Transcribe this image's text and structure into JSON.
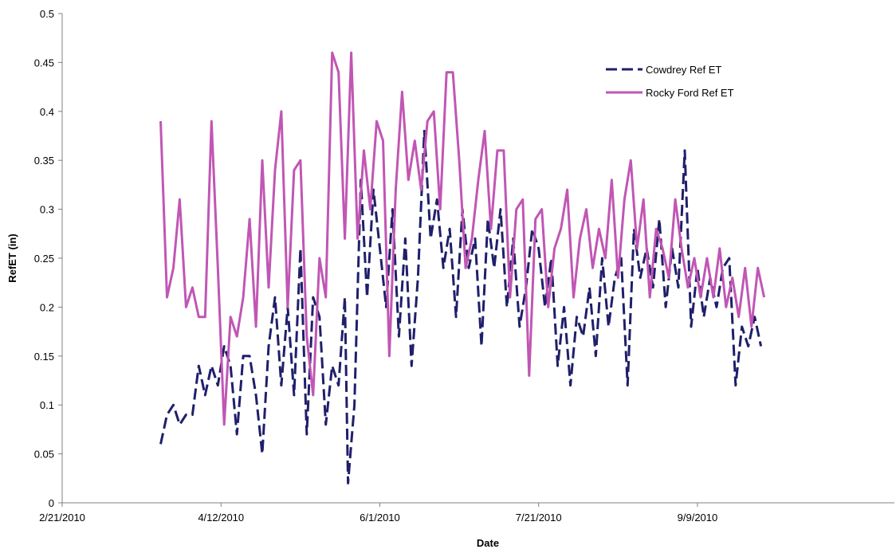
{
  "chart_data": {
    "type": "line",
    "title": "",
    "xlabel": "Date",
    "ylabel": "RefET (in)",
    "x_axis_type": "date",
    "xlim": [
      "2010-02-21",
      "2010-11-10"
    ],
    "ylim": [
      0,
      0.5
    ],
    "x_ticks": [
      "2010-02-21",
      "2010-04-12",
      "2010-06-01",
      "2010-07-21",
      "2010-09-09"
    ],
    "x_tick_labels": [
      "2/21/2010",
      "4/12/2010",
      "6/1/2010",
      "7/21/2010",
      "9/9/2010"
    ],
    "y_ticks": [
      0,
      0.05,
      0.1,
      0.15,
      0.2,
      0.25,
      0.3,
      0.35,
      0.4,
      0.45,
      0.5
    ],
    "y_tick_labels": [
      "0",
      "0.05",
      "0.1",
      "0.15",
      "0.2",
      "0.25",
      "0.3",
      "0.35",
      "0.4",
      "0.45",
      "0.5"
    ],
    "grid": false,
    "legend_position": "top-right",
    "series": [
      {
        "name": "Cowdrey Ref ET",
        "color": "#1f1f6b",
        "dash": "dashed",
        "points": [
          [
            "2010-03-24",
            0.06
          ],
          [
            "2010-03-26",
            0.09
          ],
          [
            "2010-03-28",
            0.1
          ],
          [
            "2010-03-30",
            0.08
          ],
          [
            "2010-04-01",
            0.09
          ],
          [
            "2010-04-03",
            0.09
          ],
          [
            "2010-04-05",
            0.14
          ],
          [
            "2010-04-07",
            0.11
          ],
          [
            "2010-04-09",
            0.14
          ],
          [
            "2010-04-11",
            0.12
          ],
          [
            "2010-04-13",
            0.16
          ],
          [
            "2010-04-15",
            0.14
          ],
          [
            "2010-04-17",
            0.07
          ],
          [
            "2010-04-19",
            0.15
          ],
          [
            "2010-04-21",
            0.15
          ],
          [
            "2010-04-23",
            0.11
          ],
          [
            "2010-04-25",
            0.05
          ],
          [
            "2010-04-27",
            0.16
          ],
          [
            "2010-04-29",
            0.21
          ],
          [
            "2010-05-01",
            0.12
          ],
          [
            "2010-05-03",
            0.2
          ],
          [
            "2010-05-05",
            0.11
          ],
          [
            "2010-05-07",
            0.26
          ],
          [
            "2010-05-09",
            0.07
          ],
          [
            "2010-05-11",
            0.21
          ],
          [
            "2010-05-13",
            0.19
          ],
          [
            "2010-05-15",
            0.08
          ],
          [
            "2010-05-17",
            0.14
          ],
          [
            "2010-05-19",
            0.12
          ],
          [
            "2010-05-21",
            0.21
          ],
          [
            "2010-05-22",
            0.02
          ],
          [
            "2010-05-24",
            0.1
          ],
          [
            "2010-05-26",
            0.33
          ],
          [
            "2010-05-28",
            0.21
          ],
          [
            "2010-05-30",
            0.32
          ],
          [
            "2010-06-01",
            0.26
          ],
          [
            "2010-06-03",
            0.2
          ],
          [
            "2010-06-05",
            0.3
          ],
          [
            "2010-06-07",
            0.17
          ],
          [
            "2010-06-09",
            0.27
          ],
          [
            "2010-06-11",
            0.14
          ],
          [
            "2010-06-13",
            0.23
          ],
          [
            "2010-06-15",
            0.38
          ],
          [
            "2010-06-17",
            0.27
          ],
          [
            "2010-06-19",
            0.31
          ],
          [
            "2010-06-21",
            0.24
          ],
          [
            "2010-06-23",
            0.28
          ],
          [
            "2010-06-25",
            0.19
          ],
          [
            "2010-06-27",
            0.3
          ],
          [
            "2010-06-29",
            0.24
          ],
          [
            "2010-07-01",
            0.27
          ],
          [
            "2010-07-03",
            0.16
          ],
          [
            "2010-07-05",
            0.29
          ],
          [
            "2010-07-07",
            0.24
          ],
          [
            "2010-07-09",
            0.3
          ],
          [
            "2010-07-11",
            0.2
          ],
          [
            "2010-07-13",
            0.27
          ],
          [
            "2010-07-15",
            0.18
          ],
          [
            "2010-07-17",
            0.22
          ],
          [
            "2010-07-19",
            0.28
          ],
          [
            "2010-07-21",
            0.26
          ],
          [
            "2010-07-23",
            0.2
          ],
          [
            "2010-07-25",
            0.25
          ],
          [
            "2010-07-27",
            0.14
          ],
          [
            "2010-07-29",
            0.2
          ],
          [
            "2010-07-31",
            0.12
          ],
          [
            "2010-08-02",
            0.19
          ],
          [
            "2010-08-04",
            0.17
          ],
          [
            "2010-08-06",
            0.22
          ],
          [
            "2010-08-08",
            0.15
          ],
          [
            "2010-08-10",
            0.25
          ],
          [
            "2010-08-12",
            0.18
          ],
          [
            "2010-08-14",
            0.23
          ],
          [
            "2010-08-16",
            0.25
          ],
          [
            "2010-08-18",
            0.12
          ],
          [
            "2010-08-20",
            0.28
          ],
          [
            "2010-08-22",
            0.23
          ],
          [
            "2010-08-24",
            0.26
          ],
          [
            "2010-08-26",
            0.22
          ],
          [
            "2010-08-28",
            0.29
          ],
          [
            "2010-08-30",
            0.2
          ],
          [
            "2010-09-01",
            0.26
          ],
          [
            "2010-09-03",
            0.22
          ],
          [
            "2010-09-05",
            0.36
          ],
          [
            "2010-09-07",
            0.18
          ],
          [
            "2010-09-09",
            0.24
          ],
          [
            "2010-09-11",
            0.19
          ],
          [
            "2010-09-13",
            0.23
          ],
          [
            "2010-09-15",
            0.2
          ],
          [
            "2010-09-17",
            0.24
          ],
          [
            "2010-09-19",
            0.25
          ],
          [
            "2010-09-21",
            0.12
          ],
          [
            "2010-09-23",
            0.18
          ],
          [
            "2010-09-25",
            0.16
          ],
          [
            "2010-09-27",
            0.19
          ],
          [
            "2010-09-29",
            0.16
          ]
        ]
      },
      {
        "name": "Rocky Ford Ref ET",
        "color": "#c156b4",
        "dash": "solid",
        "points": [
          [
            "2010-03-24",
            0.39
          ],
          [
            "2010-03-26",
            0.21
          ],
          [
            "2010-03-28",
            0.24
          ],
          [
            "2010-03-30",
            0.31
          ],
          [
            "2010-04-01",
            0.2
          ],
          [
            "2010-04-03",
            0.22
          ],
          [
            "2010-04-05",
            0.19
          ],
          [
            "2010-04-07",
            0.19
          ],
          [
            "2010-04-09",
            0.39
          ],
          [
            "2010-04-11",
            0.24
          ],
          [
            "2010-04-13",
            0.08
          ],
          [
            "2010-04-15",
            0.19
          ],
          [
            "2010-04-17",
            0.17
          ],
          [
            "2010-04-19",
            0.21
          ],
          [
            "2010-04-21",
            0.29
          ],
          [
            "2010-04-23",
            0.18
          ],
          [
            "2010-04-25",
            0.35
          ],
          [
            "2010-04-27",
            0.22
          ],
          [
            "2010-04-29",
            0.34
          ],
          [
            "2010-05-01",
            0.4
          ],
          [
            "2010-05-03",
            0.2
          ],
          [
            "2010-05-05",
            0.34
          ],
          [
            "2010-05-07",
            0.35
          ],
          [
            "2010-05-09",
            0.17
          ],
          [
            "2010-05-11",
            0.11
          ],
          [
            "2010-05-13",
            0.25
          ],
          [
            "2010-05-15",
            0.21
          ],
          [
            "2010-05-17",
            0.46
          ],
          [
            "2010-05-19",
            0.44
          ],
          [
            "2010-05-21",
            0.27
          ],
          [
            "2010-05-23",
            0.46
          ],
          [
            "2010-05-25",
            0.27
          ],
          [
            "2010-05-27",
            0.36
          ],
          [
            "2010-05-29",
            0.3
          ],
          [
            "2010-05-31",
            0.39
          ],
          [
            "2010-06-02",
            0.37
          ],
          [
            "2010-06-04",
            0.15
          ],
          [
            "2010-06-06",
            0.32
          ],
          [
            "2010-06-08",
            0.42
          ],
          [
            "2010-06-10",
            0.33
          ],
          [
            "2010-06-12",
            0.37
          ],
          [
            "2010-06-14",
            0.32
          ],
          [
            "2010-06-16",
            0.39
          ],
          [
            "2010-06-18",
            0.4
          ],
          [
            "2010-06-20",
            0.3
          ],
          [
            "2010-06-22",
            0.44
          ],
          [
            "2010-06-24",
            0.44
          ],
          [
            "2010-06-26",
            0.35
          ],
          [
            "2010-06-28",
            0.24
          ],
          [
            "2010-06-30",
            0.27
          ],
          [
            "2010-07-02",
            0.33
          ],
          [
            "2010-07-04",
            0.38
          ],
          [
            "2010-07-06",
            0.28
          ],
          [
            "2010-07-08",
            0.36
          ],
          [
            "2010-07-10",
            0.36
          ],
          [
            "2010-07-12",
            0.21
          ],
          [
            "2010-07-14",
            0.3
          ],
          [
            "2010-07-16",
            0.31
          ],
          [
            "2010-07-18",
            0.13
          ],
          [
            "2010-07-20",
            0.29
          ],
          [
            "2010-07-22",
            0.3
          ],
          [
            "2010-07-24",
            0.2
          ],
          [
            "2010-07-26",
            0.26
          ],
          [
            "2010-07-28",
            0.28
          ],
          [
            "2010-07-30",
            0.32
          ],
          [
            "2010-08-01",
            0.21
          ],
          [
            "2010-08-03",
            0.27
          ],
          [
            "2010-08-05",
            0.3
          ],
          [
            "2010-08-07",
            0.24
          ],
          [
            "2010-08-09",
            0.28
          ],
          [
            "2010-08-11",
            0.25
          ],
          [
            "2010-08-13",
            0.33
          ],
          [
            "2010-08-15",
            0.23
          ],
          [
            "2010-08-17",
            0.31
          ],
          [
            "2010-08-19",
            0.35
          ],
          [
            "2010-08-21",
            0.26
          ],
          [
            "2010-08-23",
            0.31
          ],
          [
            "2010-08-25",
            0.21
          ],
          [
            "2010-08-27",
            0.28
          ],
          [
            "2010-08-29",
            0.26
          ],
          [
            "2010-08-31",
            0.23
          ],
          [
            "2010-09-02",
            0.31
          ],
          [
            "2010-09-04",
            0.26
          ],
          [
            "2010-09-06",
            0.22
          ],
          [
            "2010-09-08",
            0.25
          ],
          [
            "2010-09-10",
            0.21
          ],
          [
            "2010-09-12",
            0.25
          ],
          [
            "2010-09-14",
            0.21
          ],
          [
            "2010-09-16",
            0.26
          ],
          [
            "2010-09-18",
            0.2
          ],
          [
            "2010-09-20",
            0.23
          ],
          [
            "2010-09-22",
            0.19
          ],
          [
            "2010-09-24",
            0.24
          ],
          [
            "2010-09-26",
            0.18
          ],
          [
            "2010-09-28",
            0.24
          ],
          [
            "2010-09-30",
            0.21
          ]
        ]
      }
    ]
  }
}
